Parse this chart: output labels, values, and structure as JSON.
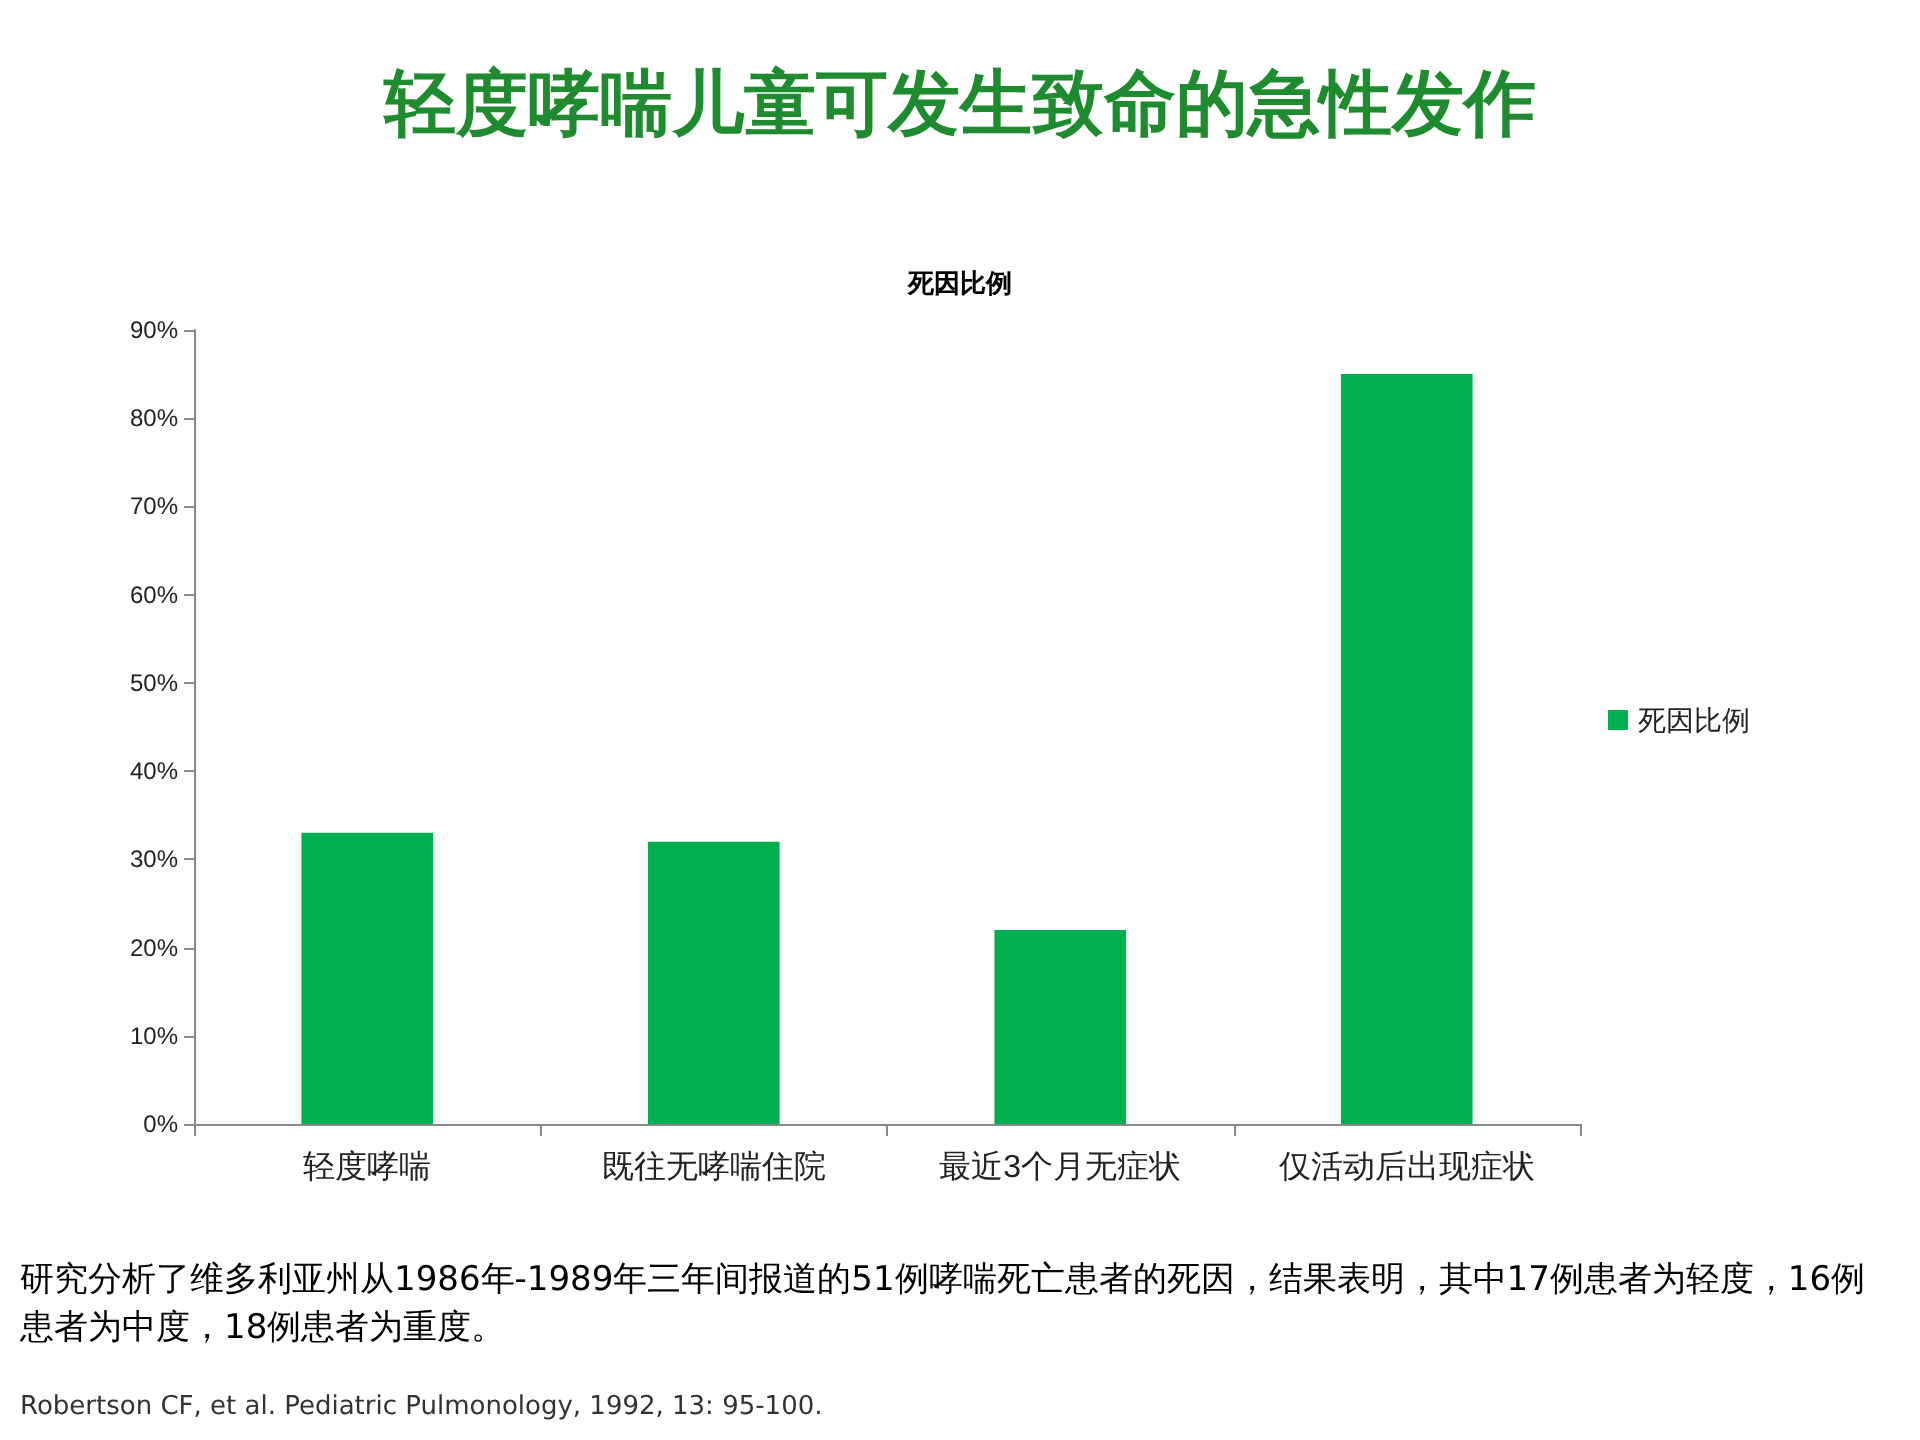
{
  "chart_data": {
    "type": "bar",
    "title": "轻度哮喘儿童可发生致命的急性发作",
    "subtitle": "死因比例",
    "categories": [
      "轻度哮喘",
      "既往无哮喘住院",
      "最近3个月无症状",
      "仅活动后出现症状"
    ],
    "series": [
      {
        "name": "死因比例",
        "color": "#00b050",
        "values": [
          33,
          32,
          22,
          85
        ]
      }
    ],
    "ylim": [
      0,
      90
    ],
    "yticks": [
      {
        "value": 0,
        "label": "0%"
      },
      {
        "value": 10,
        "label": "10%"
      },
      {
        "value": 20,
        "label": "20%"
      },
      {
        "value": 30,
        "label": "30%"
      },
      {
        "value": 40,
        "label": "40%"
      },
      {
        "value": 50,
        "label": "50%"
      },
      {
        "value": 60,
        "label": "60%"
      },
      {
        "value": 70,
        "label": "70%"
      },
      {
        "value": 80,
        "label": "80%"
      },
      {
        "value": 90,
        "label": "90%"
      }
    ],
    "grid": false,
    "legend": "right",
    "annotations": [
      "研究分析了维多利亚州从1986年-1989年三年间报道的51例哮喘死亡患者的死因，结果表明，其中17例患者为轻度，16例患者为中度，18例患者为重度。",
      "Robertson CF, et al. Pediatric Pulmonology, 1992, 13: 95-100."
    ]
  }
}
